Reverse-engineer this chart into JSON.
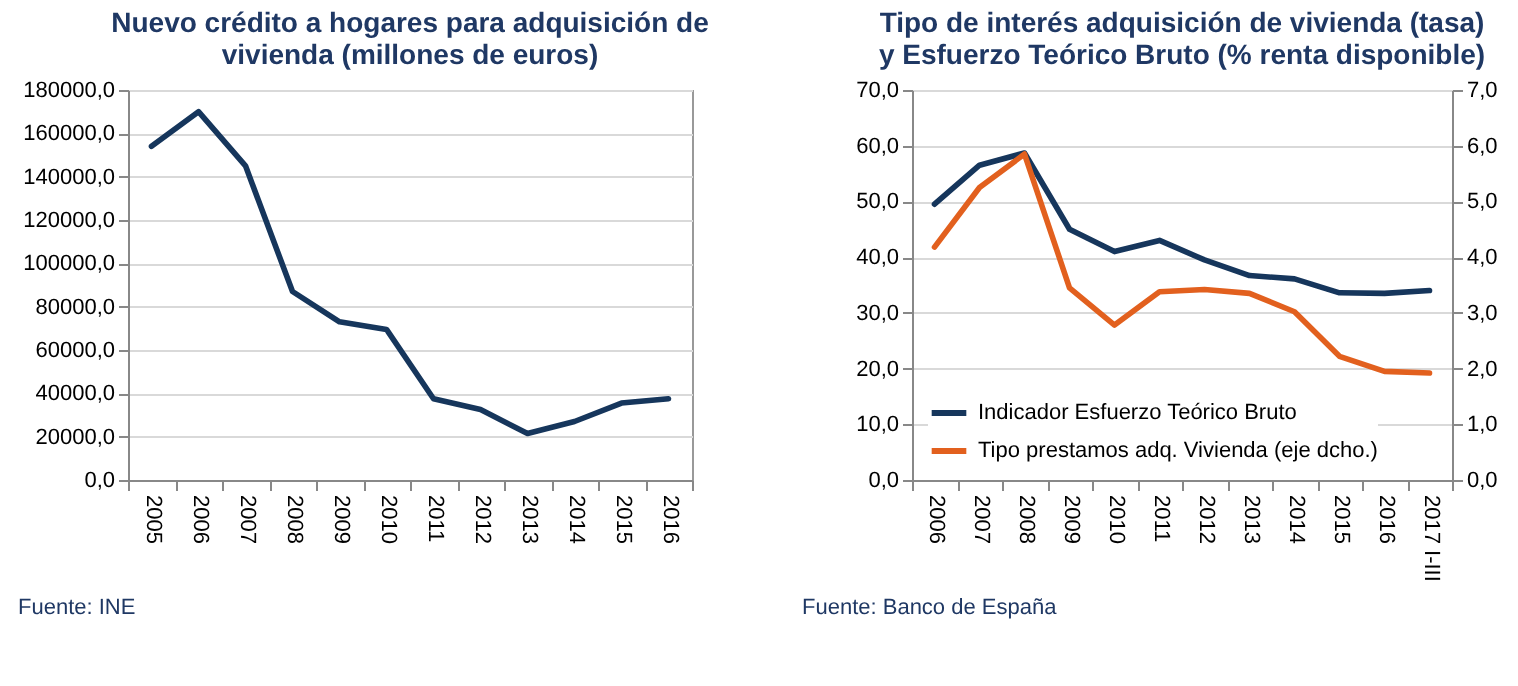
{
  "chart_data": [
    {
      "type": "line",
      "title": "Nuevo crédito a hogares para adquisición de vivienda (millones de euros)",
      "categories": [
        "2005",
        "2006",
        "2007",
        "2008",
        "2009",
        "2010",
        "2011",
        "2012",
        "2013",
        "2014",
        "2015",
        "2016"
      ],
      "series": [
        {
          "color": "#16365c",
          "values": [
            154000,
            170000,
            145000,
            87000,
            73000,
            69500,
            37500,
            32500,
            21500,
            27000,
            35500,
            37500
          ]
        }
      ],
      "ylim": [
        0,
        180000
      ],
      "yticks": [
        {
          "value": 0,
          "label": "0,0"
        },
        {
          "value": 20000,
          "label": "20000,0"
        },
        {
          "value": 40000,
          "label": "40000,0"
        },
        {
          "value": 60000,
          "label": "60000,0"
        },
        {
          "value": 80000,
          "label": "80000,0"
        },
        {
          "value": 100000,
          "label": "100000,0"
        },
        {
          "value": 120000,
          "label": "120000,0"
        },
        {
          "value": 140000,
          "label": "140000,0"
        },
        {
          "value": 160000,
          "label": "160000,0"
        },
        {
          "value": 180000,
          "label": "180000,0"
        }
      ],
      "grid": "y",
      "annotations": [
        "Fuente: INE"
      ]
    },
    {
      "type": "line",
      "title": "Tipo de interés adquisición de vivienda (tasa) y Esfuerzo Teórico Bruto (% renta disponible)",
      "categories": [
        "2006",
        "2007",
        "2008",
        "2009",
        "2010",
        "2011",
        "2012",
        "2013",
        "2014",
        "2015",
        "2016",
        "2017 I-III"
      ],
      "series": [
        {
          "name": "Indicador Esfuerzo Teórico Bruto",
          "color": "#16365c",
          "values": [
            49.5,
            56.5,
            58.7,
            45,
            41,
            43,
            39.5,
            36.7,
            36.1,
            33.6,
            33.5,
            34.0
          ]
        },
        {
          "name": "Tipo prestamos adq. Vivienda (eje dcho.)",
          "color": "#e2601e",
          "axis": "y2",
          "values": [
            4.18,
            5.25,
            5.85,
            3.45,
            2.78,
            3.38,
            3.42,
            3.35,
            3.02,
            2.22,
            1.95,
            1.92
          ]
        }
      ],
      "ylim": [
        0,
        70
      ],
      "yticks": [
        {
          "value": 0,
          "label": "0,0"
        },
        {
          "value": 10,
          "label": "10,0"
        },
        {
          "value": 20,
          "label": "20,0"
        },
        {
          "value": 30,
          "label": "30,0"
        },
        {
          "value": 40,
          "label": "40,0"
        },
        {
          "value": 50,
          "label": "50,0"
        },
        {
          "value": 60,
          "label": "60,0"
        },
        {
          "value": 70,
          "label": "70,0"
        }
      ],
      "y2lim": [
        0,
        7
      ],
      "y2ticks": [
        {
          "value": 0,
          "label": "0,0"
        },
        {
          "value": 1,
          "label": "1,0"
        },
        {
          "value": 2,
          "label": "2,0"
        },
        {
          "value": 3,
          "label": "3,0"
        },
        {
          "value": 4,
          "label": "4,0"
        },
        {
          "value": 5,
          "label": "5,0"
        },
        {
          "value": 6,
          "label": "6,0"
        },
        {
          "value": 7,
          "label": "7,0"
        }
      ],
      "grid": "y",
      "legend": "bottom left",
      "annotations": [
        "Fuente: Banco de España"
      ]
    }
  ]
}
